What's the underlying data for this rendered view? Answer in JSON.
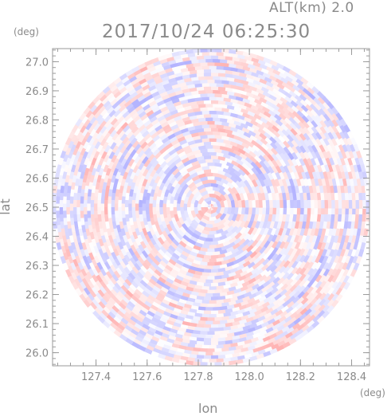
{
  "header": {
    "alt_label": "ALT(km) 2.0",
    "timestamp": "2017/10/24 06:25:30"
  },
  "chart_data": {
    "type": "heatmap",
    "title": "2017/10/24 06:25:30",
    "xlabel": "lon",
    "ylabel": "lat",
    "x_unit": "(deg)",
    "y_unit": "(deg)",
    "xlim": [
      127.23,
      128.47
    ],
    "ylim": [
      25.955,
      27.045
    ],
    "x_ticks": [
      "127.4",
      "127.6",
      "127.8",
      "128.0",
      "128.2",
      "128.4"
    ],
    "y_ticks": [
      "26.0",
      "26.1",
      "26.2",
      "26.3",
      "26.4",
      "26.5",
      "26.6",
      "26.7",
      "26.8",
      "26.9",
      "27.0"
    ],
    "center": {
      "lon": 127.85,
      "lat": 26.5
    },
    "extent": "circular radar coverage filling the plot frame",
    "colormap": {
      "negative": "#b4b4ff",
      "neutral": "#ffffff",
      "positive": "#ffb4b4"
    },
    "grid": false
  }
}
